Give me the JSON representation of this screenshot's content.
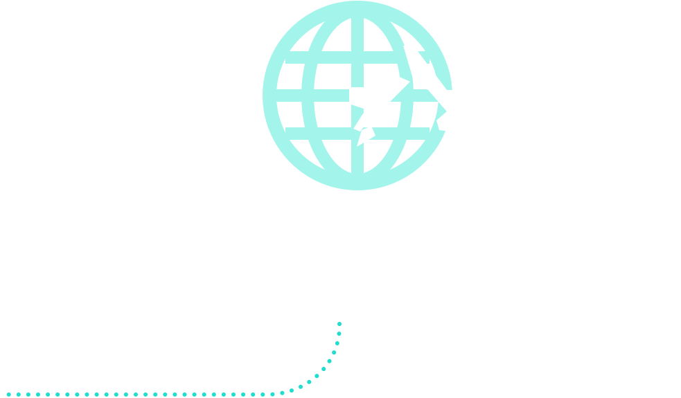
{
  "illustration": {
    "globe_icon": "globe-icon",
    "connector_style": "dotted",
    "colors": {
      "background": "#ffffff",
      "globe": "#a3f5ec",
      "connector": "#22dccd",
      "cutout": "#ffffff"
    }
  }
}
